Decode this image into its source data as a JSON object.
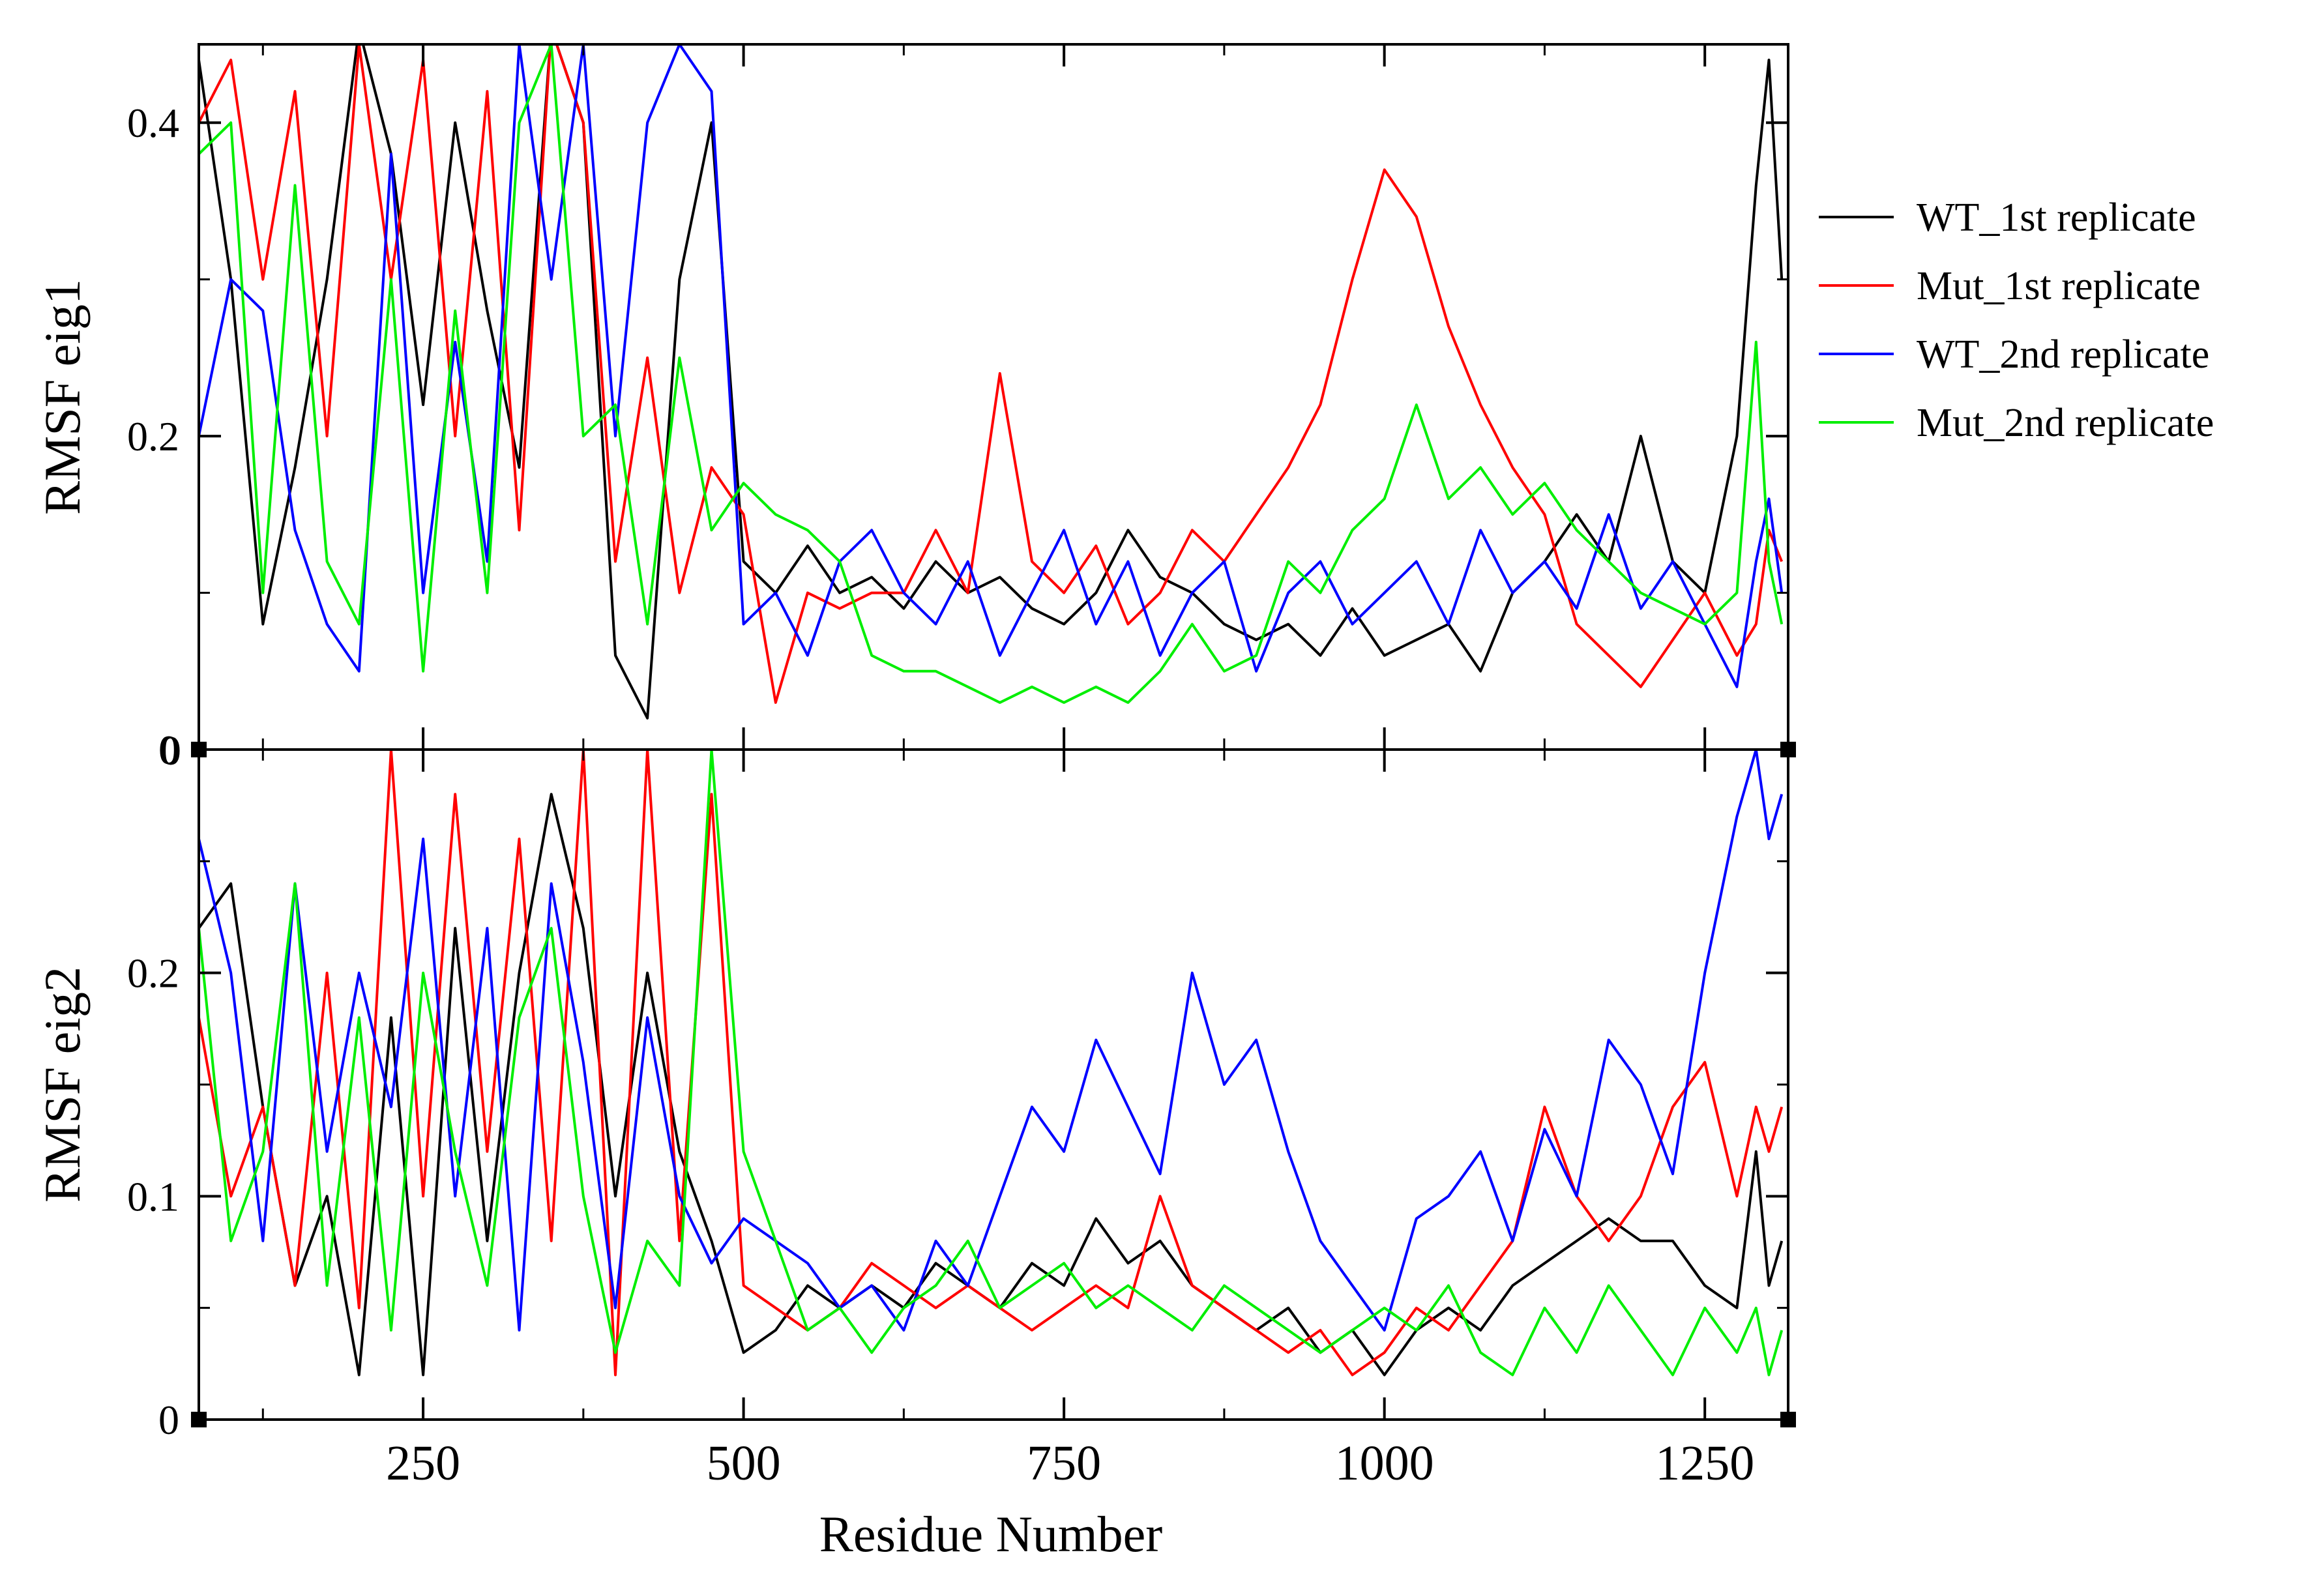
{
  "chart_data": [
    {
      "type": "line",
      "panel": "top",
      "title": "",
      "xlabel": "",
      "ylabel": "RMSF eig1",
      "xlim": [
        75,
        1315
      ],
      "ylim": [
        0,
        0.45
      ],
      "yticks": [
        {
          "value": 0,
          "label": "0"
        },
        {
          "value": 0.2,
          "label": "0.2"
        },
        {
          "value": 0.4,
          "label": "0.4"
        }
      ],
      "series": [
        {
          "name": "WT_1st replicate",
          "color": "#000000",
          "x": [
            75,
            100,
            125,
            150,
            175,
            200,
            225,
            250,
            275,
            300,
            325,
            350,
            375,
            400,
            425,
            450,
            475,
            500,
            525,
            550,
            575,
            600,
            625,
            650,
            675,
            700,
            725,
            750,
            775,
            800,
            825,
            850,
            875,
            900,
            925,
            950,
            975,
            1000,
            1025,
            1050,
            1075,
            1100,
            1125,
            1150,
            1175,
            1200,
            1225,
            1250,
            1275,
            1290,
            1300,
            1310
          ],
          "y": [
            0.44,
            0.3,
            0.08,
            0.18,
            0.3,
            0.46,
            0.38,
            0.22,
            0.4,
            0.28,
            0.18,
            0.46,
            0.4,
            0.06,
            0.02,
            0.3,
            0.4,
            0.12,
            0.1,
            0.13,
            0.1,
            0.11,
            0.09,
            0.12,
            0.1,
            0.11,
            0.09,
            0.08,
            0.1,
            0.14,
            0.11,
            0.1,
            0.08,
            0.07,
            0.08,
            0.06,
            0.09,
            0.06,
            0.07,
            0.08,
            0.05,
            0.1,
            0.12,
            0.15,
            0.12,
            0.2,
            0.12,
            0.1,
            0.2,
            0.36,
            0.44,
            0.3
          ]
        },
        {
          "name": "Mut_1st replicate",
          "color": "#ff0000",
          "x": [
            75,
            100,
            125,
            150,
            175,
            200,
            225,
            250,
            275,
            300,
            325,
            350,
            375,
            400,
            425,
            450,
            475,
            500,
            525,
            550,
            575,
            600,
            625,
            650,
            675,
            700,
            725,
            750,
            775,
            800,
            825,
            850,
            875,
            900,
            925,
            950,
            975,
            1000,
            1025,
            1050,
            1075,
            1100,
            1125,
            1150,
            1175,
            1200,
            1225,
            1250,
            1275,
            1290,
            1300,
            1310
          ],
          "y": [
            0.4,
            0.44,
            0.3,
            0.42,
            0.2,
            0.45,
            0.3,
            0.44,
            0.2,
            0.42,
            0.14,
            0.46,
            0.4,
            0.12,
            0.25,
            0.1,
            0.18,
            0.15,
            0.03,
            0.1,
            0.09,
            0.1,
            0.1,
            0.14,
            0.1,
            0.24,
            0.12,
            0.1,
            0.13,
            0.08,
            0.1,
            0.14,
            0.12,
            0.15,
            0.18,
            0.22,
            0.3,
            0.37,
            0.34,
            0.27,
            0.22,
            0.18,
            0.15,
            0.08,
            0.06,
            0.04,
            0.07,
            0.1,
            0.06,
            0.08,
            0.14,
            0.12
          ]
        },
        {
          "name": "WT_2nd replicate",
          "color": "#0000ff",
          "x": [
            75,
            100,
            125,
            150,
            175,
            200,
            225,
            250,
            275,
            300,
            325,
            350,
            375,
            400,
            425,
            450,
            475,
            500,
            525,
            550,
            575,
            600,
            625,
            650,
            675,
            700,
            725,
            750,
            775,
            800,
            825,
            850,
            875,
            900,
            925,
            950,
            975,
            1000,
            1025,
            1050,
            1075,
            1100,
            1125,
            1150,
            1175,
            1200,
            1225,
            1250,
            1275,
            1290,
            1300,
            1310
          ],
          "y": [
            0.2,
            0.3,
            0.28,
            0.14,
            0.08,
            0.05,
            0.38,
            0.1,
            0.26,
            0.12,
            0.45,
            0.3,
            0.45,
            0.2,
            0.4,
            0.45,
            0.42,
            0.08,
            0.1,
            0.06,
            0.12,
            0.14,
            0.1,
            0.08,
            0.12,
            0.06,
            0.1,
            0.14,
            0.08,
            0.12,
            0.06,
            0.1,
            0.12,
            0.05,
            0.1,
            0.12,
            0.08,
            0.1,
            0.12,
            0.08,
            0.14,
            0.1,
            0.12,
            0.09,
            0.15,
            0.09,
            0.12,
            0.08,
            0.04,
            0.12,
            0.16,
            0.1
          ]
        },
        {
          "name": "Mut_2nd replicate",
          "color": "#00ee00",
          "x": [
            75,
            100,
            125,
            150,
            175,
            200,
            225,
            250,
            275,
            300,
            325,
            350,
            375,
            400,
            425,
            450,
            475,
            500,
            525,
            550,
            575,
            600,
            625,
            650,
            675,
            700,
            725,
            750,
            775,
            800,
            825,
            850,
            875,
            900,
            925,
            950,
            975,
            1000,
            1025,
            1050,
            1075,
            1100,
            1125,
            1150,
            1175,
            1200,
            1225,
            1250,
            1275,
            1290,
            1300,
            1310
          ],
          "y": [
            0.38,
            0.4,
            0.1,
            0.36,
            0.12,
            0.08,
            0.3,
            0.05,
            0.28,
            0.1,
            0.4,
            0.45,
            0.2,
            0.22,
            0.08,
            0.25,
            0.14,
            0.17,
            0.15,
            0.14,
            0.12,
            0.06,
            0.05,
            0.05,
            0.04,
            0.03,
            0.04,
            0.03,
            0.04,
            0.03,
            0.05,
            0.08,
            0.05,
            0.06,
            0.12,
            0.1,
            0.14,
            0.16,
            0.22,
            0.16,
            0.18,
            0.15,
            0.17,
            0.14,
            0.12,
            0.1,
            0.09,
            0.08,
            0.1,
            0.26,
            0.12,
            0.08
          ]
        }
      ]
    },
    {
      "type": "line",
      "panel": "bottom",
      "title": "",
      "xlabel": "Residue Number",
      "ylabel": "RMSF eig2",
      "xlim": [
        75,
        1315
      ],
      "ylim": [
        0,
        0.3
      ],
      "xticks": [
        {
          "value": 250,
          "label": "250"
        },
        {
          "value": 500,
          "label": "500"
        },
        {
          "value": 750,
          "label": "750"
        },
        {
          "value": 1000,
          "label": "1000"
        },
        {
          "value": 1250,
          "label": "1250"
        }
      ],
      "yticks": [
        {
          "value": 0,
          "label": "0"
        },
        {
          "value": 0.1,
          "label": "0.1"
        },
        {
          "value": 0.2,
          "label": "0.2"
        }
      ],
      "top_label": "0",
      "series": [
        {
          "name": "WT_1st replicate",
          "color": "#000000",
          "x": [
            75,
            100,
            125,
            150,
            175,
            200,
            225,
            250,
            275,
            300,
            325,
            350,
            375,
            400,
            425,
            450,
            475,
            500,
            525,
            550,
            575,
            600,
            625,
            650,
            675,
            700,
            725,
            750,
            775,
            800,
            825,
            850,
            875,
            900,
            925,
            950,
            975,
            1000,
            1025,
            1050,
            1075,
            1100,
            1125,
            1150,
            1175,
            1200,
            1225,
            1250,
            1275,
            1290,
            1300,
            1310
          ],
          "y": [
            0.22,
            0.24,
            0.14,
            0.06,
            0.1,
            0.02,
            0.18,
            0.02,
            0.22,
            0.08,
            0.2,
            0.28,
            0.22,
            0.1,
            0.2,
            0.12,
            0.08,
            0.03,
            0.04,
            0.06,
            0.05,
            0.06,
            0.05,
            0.07,
            0.06,
            0.05,
            0.07,
            0.06,
            0.09,
            0.07,
            0.08,
            0.06,
            0.05,
            0.04,
            0.05,
            0.03,
            0.04,
            0.02,
            0.04,
            0.05,
            0.04,
            0.06,
            0.07,
            0.08,
            0.09,
            0.08,
            0.08,
            0.06,
            0.05,
            0.12,
            0.06,
            0.08
          ]
        },
        {
          "name": "Mut_1st replicate",
          "color": "#ff0000",
          "x": [
            75,
            100,
            125,
            150,
            175,
            200,
            225,
            250,
            275,
            300,
            325,
            350,
            375,
            400,
            425,
            450,
            475,
            500,
            525,
            550,
            575,
            600,
            625,
            650,
            675,
            700,
            725,
            750,
            775,
            800,
            825,
            850,
            875,
            900,
            925,
            950,
            975,
            1000,
            1025,
            1050,
            1075,
            1100,
            1125,
            1150,
            1175,
            1200,
            1225,
            1250,
            1275,
            1290,
            1300,
            1310
          ],
          "y": [
            0.18,
            0.1,
            0.14,
            0.06,
            0.2,
            0.05,
            0.3,
            0.1,
            0.28,
            0.12,
            0.26,
            0.08,
            0.3,
            0.02,
            0.3,
            0.08,
            0.28,
            0.06,
            0.05,
            0.04,
            0.05,
            0.07,
            0.06,
            0.05,
            0.06,
            0.05,
            0.04,
            0.05,
            0.06,
            0.05,
            0.1,
            0.06,
            0.05,
            0.04,
            0.03,
            0.04,
            0.02,
            0.03,
            0.05,
            0.04,
            0.06,
            0.08,
            0.14,
            0.1,
            0.08,
            0.1,
            0.14,
            0.16,
            0.1,
            0.14,
            0.12,
            0.14
          ]
        },
        {
          "name": "WT_2nd replicate",
          "color": "#0000ff",
          "x": [
            75,
            100,
            125,
            150,
            175,
            200,
            225,
            250,
            275,
            300,
            325,
            350,
            375,
            400,
            425,
            450,
            475,
            500,
            525,
            550,
            575,
            600,
            625,
            650,
            675,
            700,
            725,
            750,
            775,
            800,
            825,
            850,
            875,
            900,
            925,
            950,
            975,
            1000,
            1025,
            1050,
            1075,
            1100,
            1125,
            1150,
            1175,
            1200,
            1225,
            1250,
            1275,
            1290,
            1300,
            1310
          ],
          "y": [
            0.26,
            0.2,
            0.08,
            0.24,
            0.12,
            0.2,
            0.14,
            0.26,
            0.1,
            0.22,
            0.04,
            0.24,
            0.16,
            0.05,
            0.18,
            0.1,
            0.07,
            0.09,
            0.08,
            0.07,
            0.05,
            0.06,
            0.04,
            0.08,
            0.06,
            0.1,
            0.14,
            0.12,
            0.17,
            0.14,
            0.11,
            0.2,
            0.15,
            0.17,
            0.12,
            0.08,
            0.06,
            0.04,
            0.09,
            0.1,
            0.12,
            0.08,
            0.13,
            0.1,
            0.17,
            0.15,
            0.11,
            0.2,
            0.27,
            0.3,
            0.26,
            0.28
          ]
        },
        {
          "name": "Mut_2nd replicate",
          "color": "#00ee00",
          "x": [
            75,
            100,
            125,
            150,
            175,
            200,
            225,
            250,
            275,
            300,
            325,
            350,
            375,
            400,
            425,
            450,
            475,
            500,
            525,
            550,
            575,
            600,
            625,
            650,
            675,
            700,
            725,
            750,
            775,
            800,
            825,
            850,
            875,
            900,
            925,
            950,
            975,
            1000,
            1025,
            1050,
            1075,
            1100,
            1125,
            1150,
            1175,
            1200,
            1225,
            1250,
            1275,
            1290,
            1300,
            1310
          ],
          "y": [
            0.22,
            0.08,
            0.12,
            0.24,
            0.06,
            0.18,
            0.04,
            0.2,
            0.12,
            0.06,
            0.18,
            0.22,
            0.1,
            0.03,
            0.08,
            0.06,
            0.3,
            0.12,
            0.08,
            0.04,
            0.05,
            0.03,
            0.05,
            0.06,
            0.08,
            0.05,
            0.06,
            0.07,
            0.05,
            0.06,
            0.05,
            0.04,
            0.06,
            0.05,
            0.04,
            0.03,
            0.04,
            0.05,
            0.04,
            0.06,
            0.03,
            0.02,
            0.05,
            0.03,
            0.06,
            0.04,
            0.02,
            0.05,
            0.03,
            0.05,
            0.02,
            0.04
          ]
        }
      ]
    }
  ],
  "legend": [
    {
      "label": "WT_1st replicate",
      "color": "#000000"
    },
    {
      "label": "Mut_1st replicate",
      "color": "#ff0000"
    },
    {
      "label": "WT_2nd replicate",
      "color": "#0000ff"
    },
    {
      "label": "Mut_2nd replicate",
      "color": "#00ee00"
    }
  ]
}
